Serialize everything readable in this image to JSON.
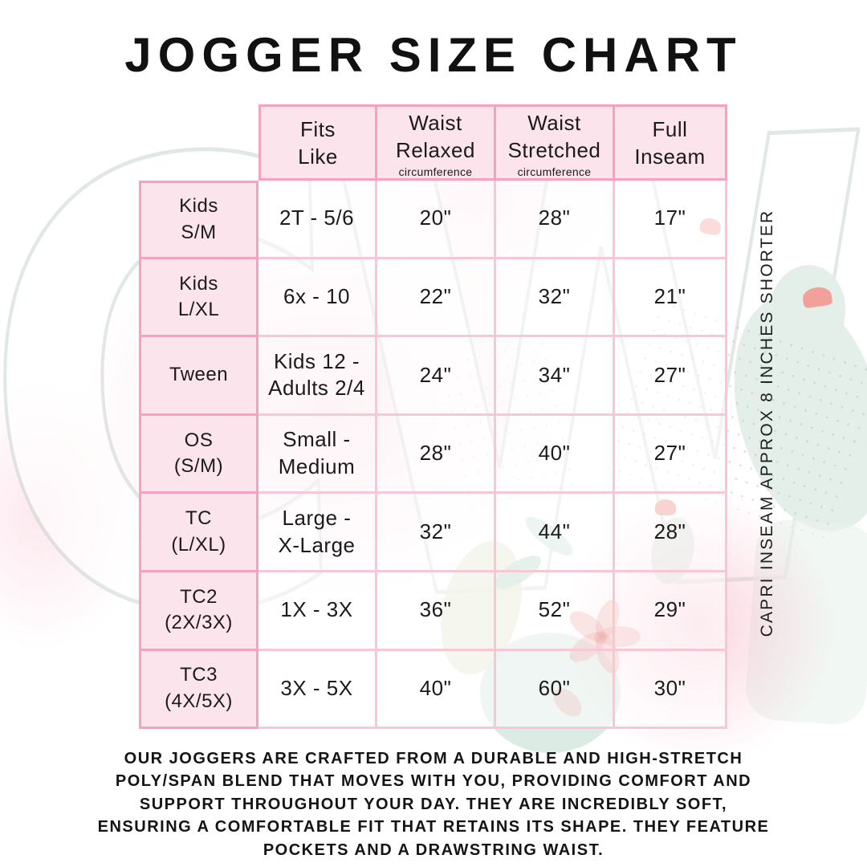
{
  "title": "JOGGER SIZE CHART",
  "side_note": "CAPRI INSEAM APPROX 8 INCHES SHORTER",
  "footer": "OUR JOGGERS ARE CRAFTED FROM A DURABLE AND HIGH-STRETCH\nPOLY/SPAN BLEND THAT MOVES WITH YOU, PROVIDING COMFORT AND\nSUPPORT THROUGHOUT YOUR DAY. THEY ARE INCREDIBLY SOFT,\nENSURING A COMFORTABLE FIT THAT RETAINS ITS SHAPE. THEY FEATURE\nPOCKETS AND A DRAWSTRING WAIST.",
  "watermark": {
    "monogram": "CW"
  },
  "colors": {
    "pink_fill": "#fbe4ec",
    "pink_border": "#f5a3bd",
    "grid_border": "#f9c6d5",
    "text": "#1b1b1b",
    "mint": "#e4efe9",
    "coral": "#ef9d96"
  },
  "chart_data": {
    "type": "table",
    "title": "JOGGER SIZE CHART",
    "columns": [
      {
        "label": "Fits\nLike",
        "sub": ""
      },
      {
        "label": "Waist\nRelaxed",
        "sub": "circumference"
      },
      {
        "label": "Waist\nStretched",
        "sub": "circumference"
      },
      {
        "label": "Full\nInseam",
        "sub": ""
      }
    ],
    "rows": [
      {
        "label": "Kids\nS/M",
        "fits_like": "2T - 5/6",
        "waist_relaxed": "20\"",
        "waist_stretched": "28\"",
        "full_inseam": "17\""
      },
      {
        "label": "Kids\nL/XL",
        "fits_like": "6x - 10",
        "waist_relaxed": "22\"",
        "waist_stretched": "32\"",
        "full_inseam": "21\""
      },
      {
        "label": "Tween",
        "fits_like": "Kids 12 -\nAdults 2/4",
        "waist_relaxed": "24\"",
        "waist_stretched": "34\"",
        "full_inseam": "27\""
      },
      {
        "label": "OS\n(S/M)",
        "fits_like": "Small -\nMedium",
        "waist_relaxed": "28\"",
        "waist_stretched": "40\"",
        "full_inseam": "27\""
      },
      {
        "label": "TC\n(L/XL)",
        "fits_like": "Large -\nX-Large",
        "waist_relaxed": "32\"",
        "waist_stretched": "44\"",
        "full_inseam": "28\""
      },
      {
        "label": "TC2\n(2X/3X)",
        "fits_like": "1X - 3X",
        "waist_relaxed": "36\"",
        "waist_stretched": "52\"",
        "full_inseam": "29\""
      },
      {
        "label": "TC3\n(4X/5X)",
        "fits_like": "3X - 5X",
        "waist_relaxed": "40\"",
        "waist_stretched": "60\"",
        "full_inseam": "30\""
      }
    ]
  }
}
